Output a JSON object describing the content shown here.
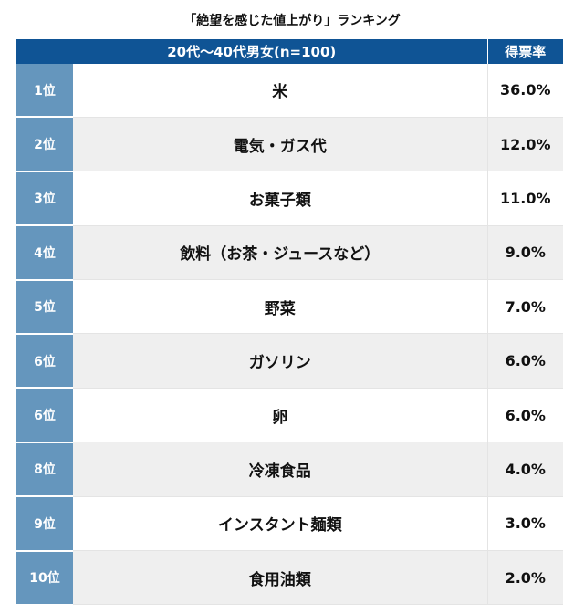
{
  "title": "「絶望を感じた値上がり」ランキング",
  "header": {
    "group": "20代〜40代男女(n=100)",
    "rate": "得票率"
  },
  "rows": [
    {
      "rank": "1位",
      "item": "米",
      "rate": "36.0%"
    },
    {
      "rank": "2位",
      "item": "電気・ガス代",
      "rate": "12.0%"
    },
    {
      "rank": "3位",
      "item": "お菓子類",
      "rate": "11.0%"
    },
    {
      "rank": "4位",
      "item": "飲料（お茶・ジュースなど）",
      "rate": "9.0%"
    },
    {
      "rank": "5位",
      "item": "野菜",
      "rate": "7.0%"
    },
    {
      "rank": "6位",
      "item": "ガソリン",
      "rate": "6.0%"
    },
    {
      "rank": "6位",
      "item": "卵",
      "rate": "6.0%"
    },
    {
      "rank": "8位",
      "item": "冷凍食品",
      "rate": "4.0%"
    },
    {
      "rank": "9位",
      "item": "インスタント麺類",
      "rate": "3.0%"
    },
    {
      "rank": "10位",
      "item": "食用油類",
      "rate": "2.0%"
    }
  ]
}
